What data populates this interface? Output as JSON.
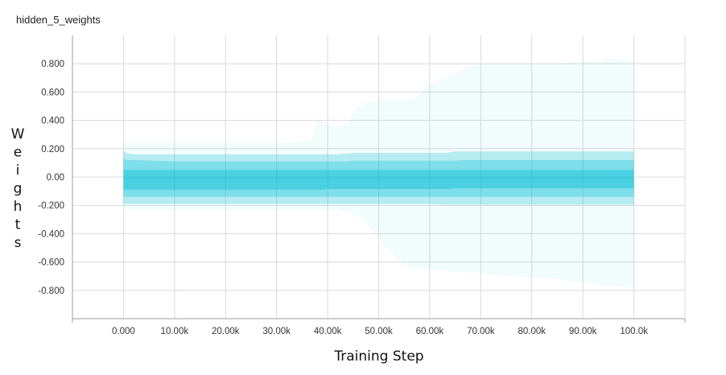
{
  "chart_data": {
    "type": "area",
    "title": "hidden_5_weights",
    "xlabel": "Training Step",
    "ylabel": "Weights",
    "xlim": [
      -10000,
      110000
    ],
    "ylim": [
      -1.0,
      1.0
    ],
    "x_ticks": [
      0,
      10000,
      20000,
      30000,
      40000,
      50000,
      60000,
      70000,
      80000,
      90000,
      100000
    ],
    "x_tick_labels": [
      "0.000",
      "10.00k",
      "20.00k",
      "30.00k",
      "40.00k",
      "50.00k",
      "60.00k",
      "70.00k",
      "80.00k",
      "90.00k",
      "100.0k"
    ],
    "y_ticks": [
      0.8,
      0.6,
      0.4,
      0.2,
      0.0,
      -0.2,
      -0.4,
      -0.6,
      -0.8
    ],
    "y_tick_labels": [
      "0.800",
      "0.600",
      "0.400",
      "0.200",
      "0.00",
      "-0.200",
      "-0.400",
      "-0.600",
      "-0.800"
    ],
    "grid": true,
    "legend": "none",
    "color": "#00bcd4",
    "x": [
      0,
      500,
      2000,
      10000,
      20000,
      30000,
      35000,
      37000,
      38000,
      39000,
      40000,
      41000,
      42000,
      43000,
      44000,
      45000,
      47000,
      48000,
      50000,
      53000,
      55000,
      57000,
      60000,
      63000,
      65000,
      67000,
      70000,
      75000,
      80000,
      85000,
      88000,
      90000,
      93000,
      95000,
      100000
    ],
    "series": [
      {
        "values_upper": [
          0.24,
          0.24,
          0.24,
          0.24,
          0.24,
          0.24,
          0.25,
          0.27,
          0.4,
          0.39,
          0.37,
          0.36,
          0.36,
          0.36,
          0.37,
          0.46,
          0.52,
          0.53,
          0.55,
          0.55,
          0.54,
          0.56,
          0.65,
          0.7,
          0.73,
          0.77,
          0.8,
          0.8,
          0.8,
          0.8,
          0.81,
          0.81,
          0.82,
          0.84,
          0.82
        ],
        "values_lower": [
          -0.23,
          -0.23,
          -0.23,
          -0.23,
          -0.23,
          -0.23,
          -0.23,
          -0.23,
          -0.23,
          -0.23,
          -0.23,
          -0.23,
          -0.23,
          -0.24,
          -0.25,
          -0.26,
          -0.3,
          -0.35,
          -0.43,
          -0.55,
          -0.62,
          -0.64,
          -0.65,
          -0.67,
          -0.67,
          -0.67,
          -0.68,
          -0.7,
          -0.71,
          -0.72,
          -0.74,
          -0.74,
          -0.76,
          -0.77,
          -0.78
        ]
      },
      {
        "values_upper": [
          0.19,
          0.17,
          0.16,
          0.16,
          0.16,
          0.16,
          0.16,
          0.16,
          0.16,
          0.16,
          0.16,
          0.16,
          0.16,
          0.165,
          0.165,
          0.17,
          0.17,
          0.17,
          0.17,
          0.17,
          0.17,
          0.17,
          0.17,
          0.17,
          0.18,
          0.18,
          0.18,
          0.18,
          0.18,
          0.18,
          0.18,
          0.18,
          0.18,
          0.18,
          0.18
        ],
        "values_lower": [
          -0.19,
          -0.19,
          -0.19,
          -0.19,
          -0.19,
          -0.19,
          -0.19,
          -0.19,
          -0.19,
          -0.19,
          -0.19,
          -0.19,
          -0.19,
          -0.19,
          -0.19,
          -0.19,
          -0.19,
          -0.19,
          -0.19,
          -0.19,
          -0.19,
          -0.19,
          -0.19,
          -0.195,
          -0.195,
          -0.195,
          -0.195,
          -0.195,
          -0.195,
          -0.195,
          -0.195,
          -0.195,
          -0.195,
          -0.195,
          -0.195
        ]
      },
      {
        "values_upper": [
          0.13,
          0.12,
          0.12,
          0.11,
          0.11,
          0.11,
          0.11,
          0.11,
          0.11,
          0.11,
          0.11,
          0.11,
          0.11,
          0.11,
          0.11,
          0.115,
          0.115,
          0.115,
          0.115,
          0.115,
          0.115,
          0.115,
          0.115,
          0.115,
          0.115,
          0.12,
          0.12,
          0.12,
          0.12,
          0.12,
          0.12,
          0.12,
          0.12,
          0.12,
          0.12
        ],
        "values_lower": [
          -0.14,
          -0.14,
          -0.14,
          -0.14,
          -0.14,
          -0.14,
          -0.14,
          -0.14,
          -0.14,
          -0.14,
          -0.14,
          -0.14,
          -0.14,
          -0.14,
          -0.14,
          -0.14,
          -0.14,
          -0.14,
          -0.14,
          -0.14,
          -0.14,
          -0.14,
          -0.14,
          -0.14,
          -0.14,
          -0.14,
          -0.14,
          -0.14,
          -0.14,
          -0.14,
          -0.14,
          -0.14,
          -0.14,
          -0.14,
          -0.14
        ]
      },
      {
        "values_upper": [
          0.05,
          0.05,
          0.05,
          0.05,
          0.05,
          0.05,
          0.05,
          0.05,
          0.05,
          0.05,
          0.05,
          0.05,
          0.05,
          0.05,
          0.05,
          0.05,
          0.05,
          0.05,
          0.05,
          0.05,
          0.05,
          0.05,
          0.05,
          0.05,
          0.05,
          0.05,
          0.05,
          0.05,
          0.05,
          0.05,
          0.05,
          0.05,
          0.05,
          0.05,
          0.05
        ],
        "values_lower": [
          -0.09,
          -0.09,
          -0.09,
          -0.09,
          -0.09,
          -0.09,
          -0.09,
          -0.09,
          -0.09,
          -0.09,
          -0.085,
          -0.085,
          -0.085,
          -0.085,
          -0.085,
          -0.085,
          -0.085,
          -0.085,
          -0.085,
          -0.085,
          -0.085,
          -0.085,
          -0.085,
          -0.085,
          -0.08,
          -0.08,
          -0.08,
          -0.08,
          -0.08,
          -0.08,
          -0.08,
          -0.08,
          -0.08,
          -0.08,
          -0.08
        ]
      }
    ],
    "median": [
      -0.01,
      -0.01,
      -0.01,
      -0.01,
      -0.01,
      -0.01,
      -0.01,
      -0.01,
      -0.01,
      -0.01,
      -0.01,
      -0.01,
      -0.01,
      -0.01,
      -0.01,
      -0.01,
      -0.01,
      -0.01,
      -0.01,
      -0.01,
      -0.01,
      -0.01,
      -0.01,
      -0.01,
      -0.01,
      -0.01,
      -0.01,
      -0.01,
      -0.01,
      -0.01,
      -0.01,
      -0.01,
      -0.01,
      -0.01,
      -0.01
    ]
  }
}
